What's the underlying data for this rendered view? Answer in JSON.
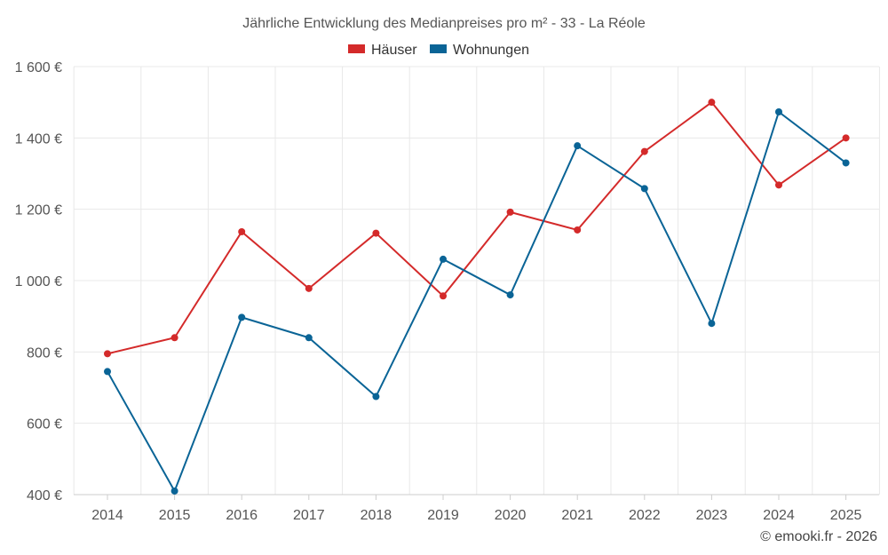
{
  "chart_data": {
    "type": "line",
    "title": "Jährliche Entwicklung des Medianpreises pro m² - 33 - La Réole",
    "categories": [
      "2014",
      "2015",
      "2016",
      "2017",
      "2018",
      "2019",
      "2020",
      "2021",
      "2022",
      "2023",
      "2024",
      "2025"
    ],
    "series": [
      {
        "name": "Häuser",
        "color": "#d42a2a",
        "values": [
          795,
          840,
          1137,
          978,
          1133,
          957,
          1192,
          1142,
          1362,
          1500,
          1268,
          1400
        ]
      },
      {
        "name": "Wohnungen",
        "color": "#0a6496",
        "values": [
          745,
          410,
          897,
          840,
          675,
          1060,
          960,
          1378,
          1258,
          880,
          1473,
          1330
        ]
      }
    ],
    "ylim": [
      400,
      1600
    ],
    "yticks": [
      400,
      600,
      800,
      1000,
      1200,
      1400,
      1600
    ],
    "ytick_labels": [
      "400 €",
      "600 €",
      "800 €",
      "1 000 €",
      "1 200 €",
      "1 400 €",
      "1 600 €"
    ],
    "legend_position": "top-center",
    "credit": "© emooki.fr - 2026"
  }
}
